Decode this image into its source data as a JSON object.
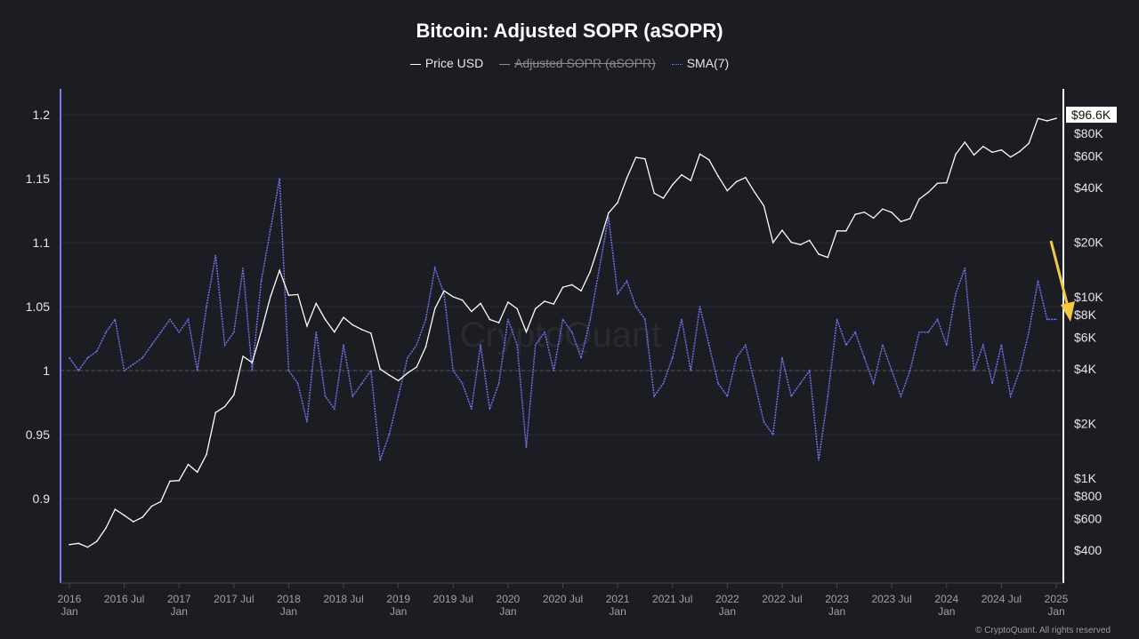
{
  "title": "Bitcoin: Adjusted SOPR (aSOPR)",
  "legend": [
    {
      "label": "Price USD",
      "enabled": true
    },
    {
      "label": "Adjusted SOPR (aSOPR)",
      "enabled": false
    },
    {
      "label": "SMA(7)",
      "enabled": true
    }
  ],
  "footer": "© CryptoQuant. All rights reserved",
  "watermark": "CryptoQuant",
  "colors": {
    "background": "#1c1c23",
    "price": "#ffffff",
    "sma": "#7070e8",
    "arrow": "#f5c842",
    "left_axis": "#7b7bf0"
  },
  "chart_data": {
    "type": "line",
    "title": "Bitcoin: Adjusted SOPR (aSOPR)",
    "x_start": "2016-01",
    "x_end": "2025-01",
    "x_ticks": [
      [
        "2016",
        "Jan"
      ],
      [
        "2016 Jul"
      ],
      [
        "2017",
        "Jan"
      ],
      [
        "2017 Jul"
      ],
      [
        "2018",
        "Jan"
      ],
      [
        "2018 Jul"
      ],
      [
        "2019",
        "Jan"
      ],
      [
        "2019 Jul"
      ],
      [
        "2020",
        "Jan"
      ],
      [
        "2020 Jul"
      ],
      [
        "2021",
        "Jan"
      ],
      [
        "2021 Jul"
      ],
      [
        "2022",
        "Jan"
      ],
      [
        "2022 Jul"
      ],
      [
        "2023",
        "Jan"
      ],
      [
        "2023 Jul"
      ],
      [
        "2024",
        "Jan"
      ],
      [
        "2024 Jul"
      ],
      [
        "2025",
        "Jan"
      ]
    ],
    "y_left": {
      "range": [
        0.855,
        1.225
      ],
      "ticks": [
        "0.9",
        "0.95",
        "1",
        "1.05",
        "1.1",
        "1.15",
        "1.2"
      ]
    },
    "y_right": {
      "scale": "log",
      "range": [
        300,
        130000
      ],
      "ticks": [
        {
          "v": 400,
          "label": "$400"
        },
        {
          "v": 600,
          "label": "$600"
        },
        {
          "v": 800,
          "label": "$800"
        },
        {
          "v": 1000,
          "label": "$1K"
        },
        {
          "v": 2000,
          "label": "$2K"
        },
        {
          "v": 4000,
          "label": "$4K"
        },
        {
          "v": 6000,
          "label": "$6K"
        },
        {
          "v": 8000,
          "label": "$8K"
        },
        {
          "v": 10000,
          "label": "$10K"
        },
        {
          "v": 20000,
          "label": "$20K"
        },
        {
          "v": 40000,
          "label": "$40K"
        },
        {
          "v": 60000,
          "label": "$60K"
        },
        {
          "v": 80000,
          "label": "$80K"
        }
      ]
    },
    "last_price_label": "$96.6K",
    "reference_line": 1,
    "grid": true,
    "legend_placement": "top",
    "series": [
      {
        "name": "Price USD",
        "axis": "right",
        "frequency": "monthly",
        "values": [
          430,
          437,
          416,
          448,
          531,
          673,
          624,
          575,
          609,
          700,
          742,
          963,
          970,
          1190,
          1080,
          1350,
          2300,
          2480,
          2880,
          4700,
          4340,
          6450,
          10000,
          14000,
          10200,
          10300,
          6900,
          9200,
          7500,
          6400,
          7700,
          7000,
          6600,
          6300,
          4000,
          3700,
          3450,
          3800,
          4100,
          5300,
          8600,
          10800,
          10000,
          9600,
          8300,
          9200,
          7500,
          7200,
          9350,
          8600,
          6400,
          8600,
          9450,
          9130,
          11300,
          11650,
          10780,
          13800,
          19700,
          29000,
          33100,
          45200,
          58800,
          57700,
          37300,
          35000,
          41500,
          47100,
          43800,
          61300,
          57000,
          46300,
          38500,
          43200,
          45500,
          37700,
          31800,
          19900,
          23300,
          20000,
          19400,
          20500,
          17200,
          16500,
          23100,
          23100,
          28500,
          29300,
          27200,
          30500,
          29200,
          26000,
          27000,
          34600,
          37700,
          42300,
          42600,
          61200,
          71300,
          60600,
          67500,
          62700,
          64600,
          59000,
          63300,
          70200,
          96400,
          93500,
          96600
        ]
      },
      {
        "name": "SMA(7)",
        "axis": "left",
        "frequency": "monthly",
        "values": [
          1.01,
          1.0,
          1.01,
          1.015,
          1.03,
          1.04,
          1.0,
          1.005,
          1.01,
          1.02,
          1.03,
          1.04,
          1.03,
          1.04,
          1.0,
          1.05,
          1.09,
          1.02,
          1.03,
          1.08,
          1.0,
          1.07,
          1.11,
          1.15,
          1.0,
          0.99,
          0.96,
          1.03,
          0.98,
          0.97,
          1.02,
          0.98,
          0.99,
          1.0,
          0.93,
          0.95,
          0.98,
          1.01,
          1.02,
          1.04,
          1.08,
          1.06,
          1.0,
          0.99,
          0.97,
          1.02,
          0.97,
          0.99,
          1.04,
          1.02,
          0.94,
          1.02,
          1.03,
          1.0,
          1.04,
          1.03,
          1.01,
          1.04,
          1.08,
          1.12,
          1.06,
          1.07,
          1.05,
          1.04,
          0.98,
          0.99,
          1.01,
          1.04,
          1.0,
          1.05,
          1.02,
          0.99,
          0.98,
          1.01,
          1.02,
          0.99,
          0.96,
          0.95,
          1.01,
          0.98,
          0.99,
          1.0,
          0.93,
          0.98,
          1.04,
          1.02,
          1.03,
          1.01,
          0.99,
          1.02,
          1.0,
          0.98,
          1.0,
          1.03,
          1.03,
          1.04,
          1.02,
          1.06,
          1.08,
          1.0,
          1.02,
          0.99,
          1.02,
          0.98,
          1.0,
          1.03,
          1.07,
          1.04,
          1.04
        ]
      }
    ]
  }
}
